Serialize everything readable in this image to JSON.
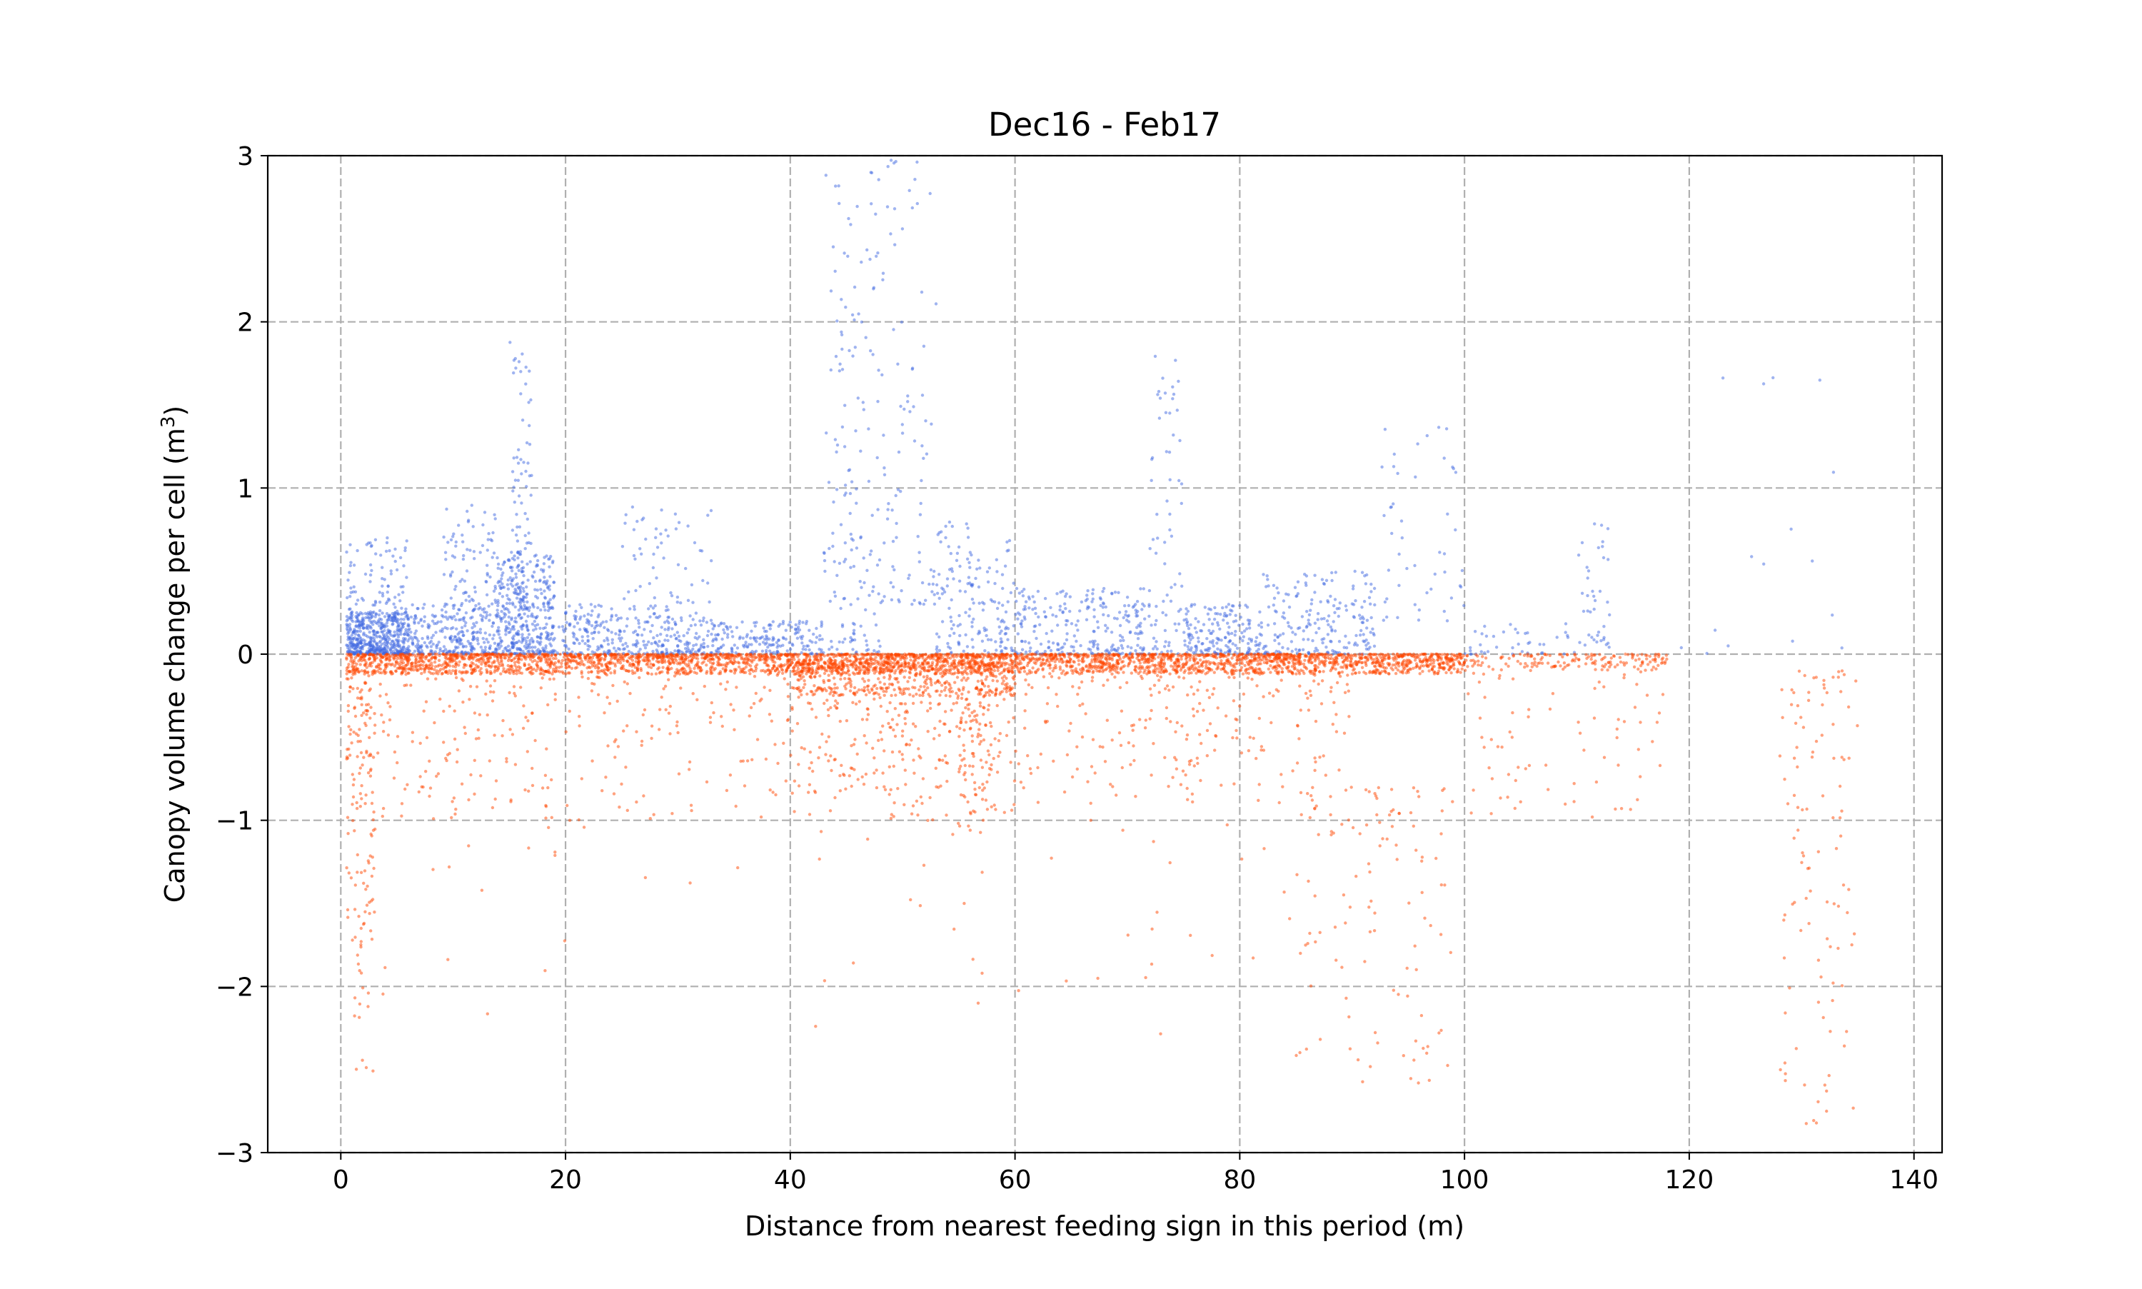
{
  "chart_data": {
    "type": "scatter",
    "title": "Dec16 - Feb17",
    "xlabel": "Distance from nearest feeding sign in this period (m)",
    "ylabel_main": "Canopy volume change per cell (m",
    "ylabel_sup": "3",
    "ylabel_end": ")",
    "xlim": [
      -6.5,
      142.5
    ],
    "ylim": [
      -3,
      3
    ],
    "x_ticks": [
      0,
      20,
      40,
      60,
      80,
      100,
      120,
      140
    ],
    "x_tick_labels": [
      "0",
      "20",
      "40",
      "60",
      "80",
      "100",
      "120",
      "140"
    ],
    "y_ticks": [
      -3,
      -2,
      -1,
      0,
      1,
      2,
      3
    ],
    "y_tick_labels": [
      "−3",
      "−2",
      "−1",
      "0",
      "1",
      "2",
      "3"
    ],
    "grid": true,
    "legend": "none",
    "series": [
      {
        "color": "#4169e1",
        "sign": "positive",
        "clusters": [
          {
            "x": [
              0.5,
              6
            ],
            "y": [
              0,
              0.25
            ],
            "n": 500
          },
          {
            "x": [
              0.5,
              6
            ],
            "y": [
              0.2,
              0.7
            ],
            "n": 110
          },
          {
            "x": [
              6,
              14
            ],
            "y": [
              0,
              0.3
            ],
            "n": 300
          },
          {
            "x": [
              9,
              14
            ],
            "y": [
              0.3,
              0.9
            ],
            "n": 80
          },
          {
            "x": [
              14,
              19
            ],
            "y": [
              0,
              0.6
            ],
            "n": 400
          },
          {
            "x": [
              15,
              17
            ],
            "y": [
              0.6,
              1.9
            ],
            "n": 60
          },
          {
            "x": [
              19,
              30
            ],
            "y": [
              0,
              0.3
            ],
            "n": 250
          },
          {
            "x": [
              25,
              33
            ],
            "y": [
              0.2,
              0.9
            ],
            "n": 70
          },
          {
            "x": [
              30,
              43
            ],
            "y": [
              0,
              0.2
            ],
            "n": 250
          },
          {
            "x": [
              43,
              48
            ],
            "y": [
              0,
              3
            ],
            "n": 160
          },
          {
            "x": [
              48,
              53
            ],
            "y": [
              0.3,
              3
            ],
            "n": 90
          },
          {
            "x": [
              53,
              60
            ],
            "y": [
              0,
              0.8
            ],
            "n": 160
          },
          {
            "x": [
              60,
              72
            ],
            "y": [
              0,
              0.4
            ],
            "n": 250
          },
          {
            "x": [
              72,
              75
            ],
            "y": [
              0,
              1.8
            ],
            "n": 70
          },
          {
            "x": [
              75,
              82
            ],
            "y": [
              0,
              0.3
            ],
            "n": 180
          },
          {
            "x": [
              82,
              92
            ],
            "y": [
              0,
              0.5
            ],
            "n": 200
          },
          {
            "x": [
              92,
              100
            ],
            "y": [
              0.2,
              1.4
            ],
            "n": 50
          },
          {
            "x": [
              100,
              110
            ],
            "y": [
              0,
              0.2
            ],
            "n": 40
          },
          {
            "x": [
              110,
              113
            ],
            "y": [
              0,
              0.8
            ],
            "n": 40
          },
          {
            "x": [
              118,
              135
            ],
            "y": [
              0,
              1.7
            ],
            "n": 16
          }
        ]
      },
      {
        "color": "#ff4500",
        "sign": "negative",
        "clusters": [
          {
            "x": [
              0.5,
              100
            ],
            "y": [
              -0.12,
              0
            ],
            "n": 3600
          },
          {
            "x": [
              40,
              60
            ],
            "y": [
              -0.25,
              -0.05
            ],
            "n": 450
          },
          {
            "x": [
              100,
              118
            ],
            "y": [
              -0.1,
              0
            ],
            "n": 150
          },
          {
            "x": [
              0.5,
              3
            ],
            "y": [
              -1.8,
              -0.1
            ],
            "n": 140
          },
          {
            "x": [
              1,
              3
            ],
            "y": [
              -2.6,
              -1.8
            ],
            "n": 15
          },
          {
            "x": [
              3,
              40
            ],
            "y": [
              -1.0,
              -0.1
            ],
            "n": 300
          },
          {
            "x": [
              40,
              60
            ],
            "y": [
              -1.0,
              -0.2
            ],
            "n": 320
          },
          {
            "x": [
              55,
              58
            ],
            "y": [
              -1.1,
              -0.3
            ],
            "n": 60
          },
          {
            "x": [
              60,
              90
            ],
            "y": [
              -0.9,
              -0.1
            ],
            "n": 250
          },
          {
            "x": [
              85,
              99
            ],
            "y": [
              -2.6,
              -0.8
            ],
            "n": 120
          },
          {
            "x": [
              100,
              118
            ],
            "y": [
              -1.0,
              -0.05
            ],
            "n": 90
          },
          {
            "x": [
              128,
              135
            ],
            "y": [
              -2.9,
              -0.1
            ],
            "n": 110
          },
          {
            "x": [
              3,
              85
            ],
            "y": [
              -2.3,
              -1.0
            ],
            "n": 60
          }
        ]
      }
    ]
  }
}
